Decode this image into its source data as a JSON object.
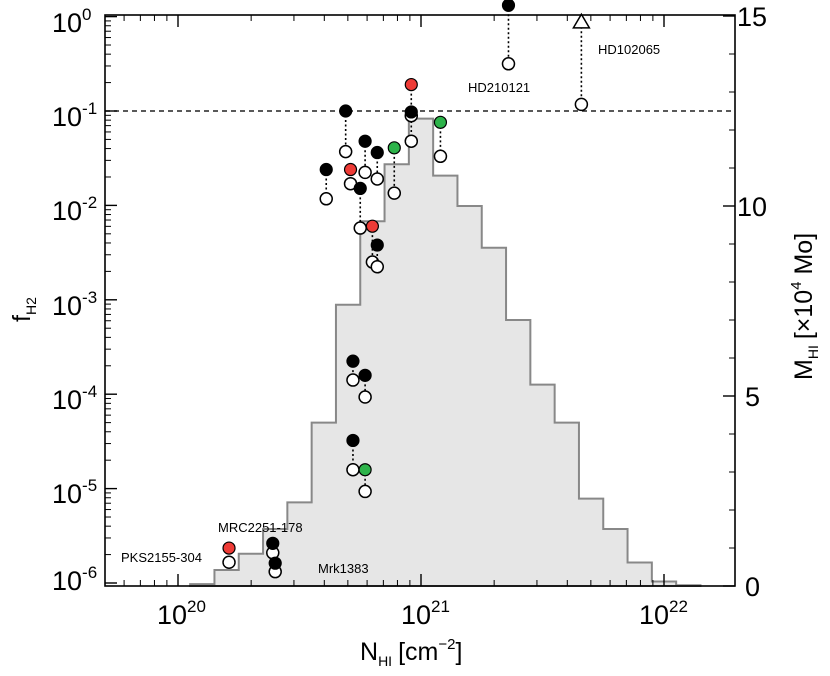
{
  "chart_data": {
    "type": "scatter",
    "xaxis": {
      "scale": "log",
      "range_log": [
        19.65,
        22.3
      ],
      "label_main": "N",
      "label_sub": "HI",
      "label_unit": "[cm",
      "label_unit_sup": "−2",
      "label_unit_end": "]",
      "ticks": [
        {
          "base": "10",
          "exp": "20",
          "log": 20
        },
        {
          "base": "10",
          "exp": "21",
          "log": 21
        },
        {
          "base": "10",
          "exp": "22",
          "log": 22
        }
      ]
    },
    "yaxis_left": {
      "scale": "log",
      "range_log": [
        -6.1,
        0.2
      ],
      "label_main": "f",
      "label_sub": "H2",
      "ticks": [
        {
          "base": "10",
          "exp": "0",
          "log": 0
        },
        {
          "base": "10",
          "exp": "-1",
          "log": -1
        },
        {
          "base": "10",
          "exp": "-2",
          "log": -2
        },
        {
          "base": "10",
          "exp": "-3",
          "log": -3
        },
        {
          "base": "10",
          "exp": "-4",
          "log": -4
        },
        {
          "base": "10",
          "exp": "-5",
          "log": -5
        },
        {
          "base": "10",
          "exp": "-6",
          "log": -6
        }
      ]
    },
    "yaxis_right": {
      "scale": "linear",
      "range": [
        0,
        15
      ],
      "ticks": [
        "0",
        "5",
        "10",
        "15"
      ],
      "tick_values": [
        0,
        5,
        10,
        15
      ],
      "label_main": "M",
      "label_sub": "HI",
      "label_unit": "[×10",
      "label_unit_sup": "4",
      "label_unit_end": " Mo]"
    },
    "reference_line": {
      "log_fH2": -1,
      "style": "dashed"
    },
    "histogram": {
      "description_series": "HI mass per log N_HI bin (right axis)",
      "bins": [
        {
          "lo": 20.05,
          "hi": 20.15,
          "m": 0.05
        },
        {
          "lo": 20.15,
          "hi": 20.25,
          "m": 0.42
        },
        {
          "lo": 20.25,
          "hi": 20.35,
          "m": 0.85
        },
        {
          "lo": 20.35,
          "hi": 20.45,
          "m": 1.5
        },
        {
          "lo": 20.45,
          "hi": 20.55,
          "m": 2.2
        },
        {
          "lo": 20.55,
          "hi": 20.65,
          "m": 4.3
        },
        {
          "lo": 20.65,
          "hi": 20.75,
          "m": 7.4
        },
        {
          "lo": 20.75,
          "hi": 20.85,
          "m": 9.6
        },
        {
          "lo": 20.85,
          "hi": 20.95,
          "m": 11.1
        },
        {
          "lo": 20.95,
          "hi": 21.05,
          "m": 12.3
        },
        {
          "lo": 21.05,
          "hi": 21.15,
          "m": 10.8
        },
        {
          "lo": 21.15,
          "hi": 21.25,
          "m": 10.0
        },
        {
          "lo": 21.25,
          "hi": 21.35,
          "m": 8.9
        },
        {
          "lo": 21.35,
          "hi": 21.45,
          "m": 7.0
        },
        {
          "lo": 21.45,
          "hi": 21.55,
          "m": 5.3
        },
        {
          "lo": 21.55,
          "hi": 21.65,
          "m": 4.3
        },
        {
          "lo": 21.65,
          "hi": 21.75,
          "m": 2.3
        },
        {
          "lo": 21.75,
          "hi": 21.85,
          "m": 1.5
        },
        {
          "lo": 21.85,
          "hi": 21.95,
          "m": 0.62
        },
        {
          "lo": 21.95,
          "hi": 22.05,
          "m": 0.12
        },
        {
          "lo": 22.05,
          "hi": 22.15,
          "m": 0.02
        }
      ]
    },
    "points": [
      {
        "lx": 20.21,
        "ly_upper": -5.63,
        "ly_lower": -5.78,
        "color": "red"
      },
      {
        "lx": 20.39,
        "ly_upper": -5.58,
        "ly_lower": -5.68,
        "color": "black"
      },
      {
        "lx": 20.4,
        "ly_upper": -5.79,
        "ly_lower": -5.88,
        "color": "black"
      },
      {
        "lx": 20.61,
        "ly_upper": -1.62,
        "ly_lower": -1.93,
        "color": "black"
      },
      {
        "lx": 20.69,
        "ly_upper": -1.0,
        "ly_lower": -1.43,
        "color": "black"
      },
      {
        "lx": 20.71,
        "ly_upper": -1.62,
        "ly_lower": -1.77,
        "color": "red"
      },
      {
        "lx": 20.75,
        "ly_upper": -1.82,
        "ly_lower": -2.24,
        "color": "black"
      },
      {
        "lx": 20.77,
        "ly_upper": -1.32,
        "ly_lower": -1.65,
        "color": "black"
      },
      {
        "lx": 20.8,
        "ly_upper": -2.22,
        "ly_lower": -2.6,
        "color": "red"
      },
      {
        "lx": 20.82,
        "ly_upper": -1.44,
        "ly_lower": -1.72,
        "color": "black"
      },
      {
        "lx": 20.82,
        "ly_upper": -2.42,
        "ly_lower": -2.65,
        "color": "black"
      },
      {
        "lx": 20.89,
        "ly_upper": -1.39,
        "ly_lower": -1.87,
        "color": "green"
      },
      {
        "lx": 20.96,
        "ly_upper": -0.72,
        "ly_lower": -1.05,
        "color": "red"
      },
      {
        "lx": 20.96,
        "ly_upper": -1.01,
        "ly_lower": -1.32,
        "color": "black"
      },
      {
        "lx": 21.08,
        "ly_upper": -1.12,
        "ly_lower": -1.48,
        "color": "green"
      },
      {
        "lx": 21.36,
        "ly_upper": 0.12,
        "ly_lower": -0.5,
        "color": "black"
      },
      {
        "lx": 20.72,
        "ly_upper": -3.65,
        "ly_lower": -3.85,
        "color": "black"
      },
      {
        "lx": 20.77,
        "ly_upper": -3.8,
        "ly_lower": -4.03,
        "color": "black"
      },
      {
        "lx": 20.72,
        "ly_upper": -4.49,
        "ly_lower": -4.8,
        "color": "black"
      },
      {
        "lx": 20.77,
        "ly_upper": -4.8,
        "ly_lower": -5.03,
        "color": "green"
      },
      {
        "lx": 21.66,
        "ly_upper": -0.06,
        "ly_lower": -0.93,
        "color": "triangle"
      }
    ],
    "annotations": [
      "HD210121",
      "HD102065",
      "MRC2251-178",
      "PKS2155-304",
      "Mrk1383"
    ]
  }
}
